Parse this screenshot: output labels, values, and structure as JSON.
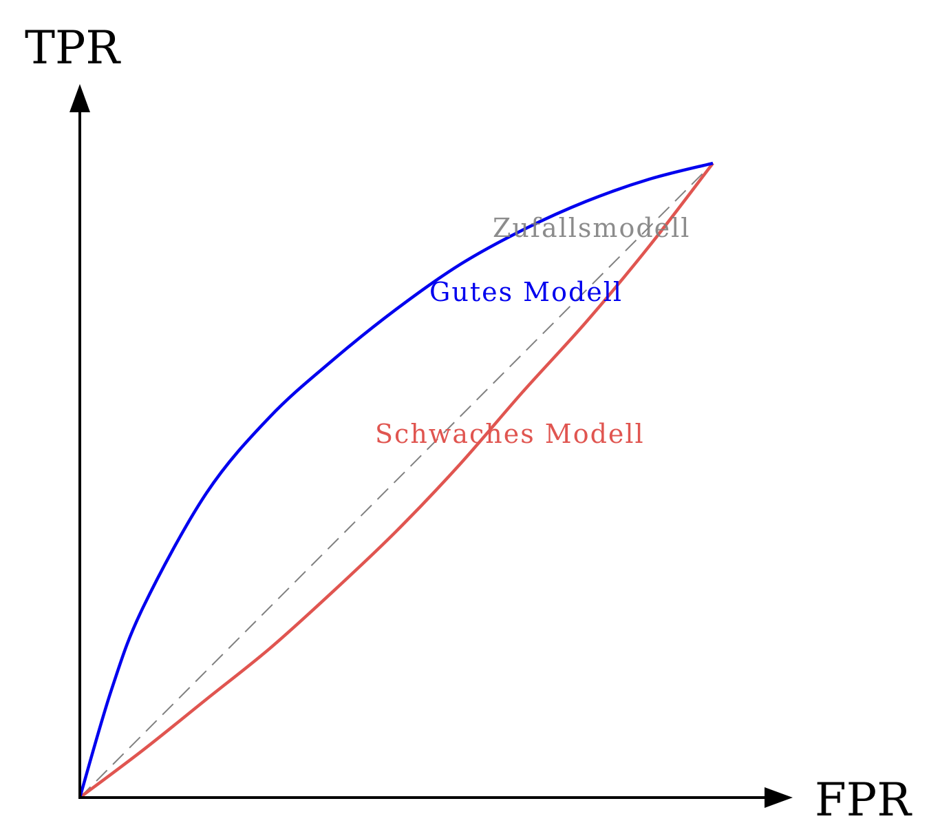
{
  "chart_data": {
    "type": "line",
    "title": "",
    "xlabel": "FPR",
    "ylabel": "TPR",
    "xlim": [
      0,
      1
    ],
    "ylim": [
      0,
      1
    ],
    "grid": false,
    "ticks": false,
    "legend": "none (inline labels)",
    "series": [
      {
        "name": "Gutes Modell",
        "color": "#0000ee",
        "style": "solid",
        "x": [
          0,
          0.05,
          0.1,
          0.2,
          0.3,
          0.4,
          0.5,
          0.6,
          0.7,
          0.8,
          0.9,
          1
        ],
        "y": [
          0,
          0.17,
          0.3,
          0.48,
          0.6,
          0.69,
          0.77,
          0.84,
          0.895,
          0.94,
          0.975,
          1
        ]
      },
      {
        "name": "Schwaches Modell",
        "color": "#e05550",
        "style": "solid",
        "x": [
          0,
          0.1,
          0.2,
          0.3,
          0.4,
          0.5,
          0.6,
          0.7,
          0.8,
          0.9,
          1
        ],
        "y": [
          0,
          0.075,
          0.155,
          0.235,
          0.325,
          0.42,
          0.525,
          0.64,
          0.75,
          0.87,
          1
        ]
      },
      {
        "name": "Zufallsmodell",
        "color": "#808080",
        "style": "dashed",
        "x": [
          0,
          1
        ],
        "y": [
          0,
          1
        ]
      }
    ]
  }
}
